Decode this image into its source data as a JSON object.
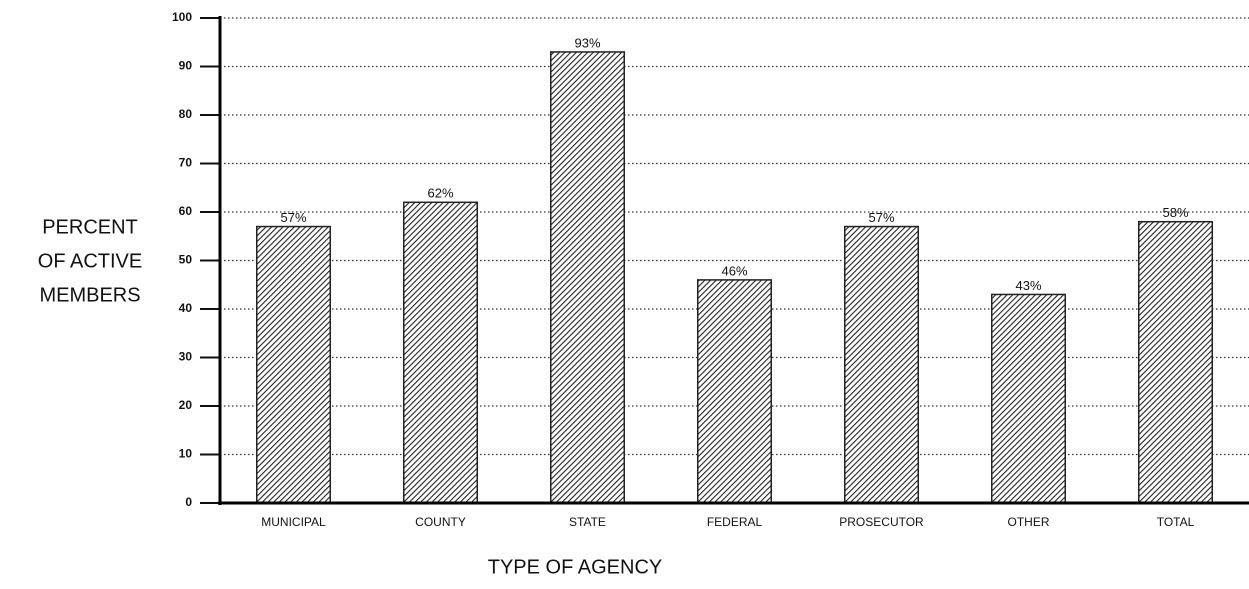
{
  "chart_data": {
    "type": "bar",
    "categories": [
      "MUNICIPAL",
      "COUNTY",
      "STATE",
      "FEDERAL",
      "PROSECUTOR",
      "OTHER",
      "TOTAL"
    ],
    "values": [
      57,
      62,
      93,
      46,
      57,
      43,
      58
    ],
    "value_labels": [
      "57%",
      "62%",
      "93%",
      "46%",
      "57%",
      "43%",
      "58%"
    ],
    "color": "#222222",
    "ylim": [
      0,
      100
    ],
    "yticks": [
      0,
      10,
      20,
      30,
      40,
      50,
      60,
      70,
      80,
      90,
      100
    ],
    "grid": true,
    "y_label": [
      "PERCENT",
      "OF ACTIVE",
      "MEMBERS"
    ],
    "x_label": "TYPE OF AGENCY"
  }
}
